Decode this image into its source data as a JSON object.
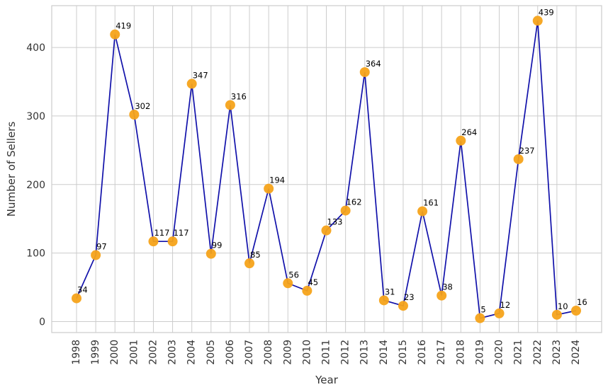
{
  "chart_data": {
    "type": "line",
    "xlabel": "Year",
    "ylabel": "Number of Sellers",
    "x": [
      "1998",
      "1999",
      "2000",
      "2001",
      "2002",
      "2003",
      "2004",
      "2005",
      "2006",
      "2007",
      "2008",
      "2009",
      "2010",
      "2011",
      "2012",
      "2013",
      "2014",
      "2015",
      "2016",
      "2017",
      "2018",
      "2019",
      "2020",
      "2021",
      "2022",
      "2023",
      "2024"
    ],
    "values": [
      34,
      97,
      419,
      302,
      117,
      117,
      347,
      99,
      316,
      85,
      194,
      56,
      45,
      133,
      162,
      364,
      31,
      23,
      161,
      38,
      264,
      5,
      12,
      237,
      439,
      10,
      16
    ],
    "ylim": [
      -16,
      461
    ],
    "yticks": [
      0,
      100,
      200,
      300,
      400
    ],
    "grid": true,
    "line_color": "#1111aa",
    "marker_color": "#f5a31a"
  }
}
